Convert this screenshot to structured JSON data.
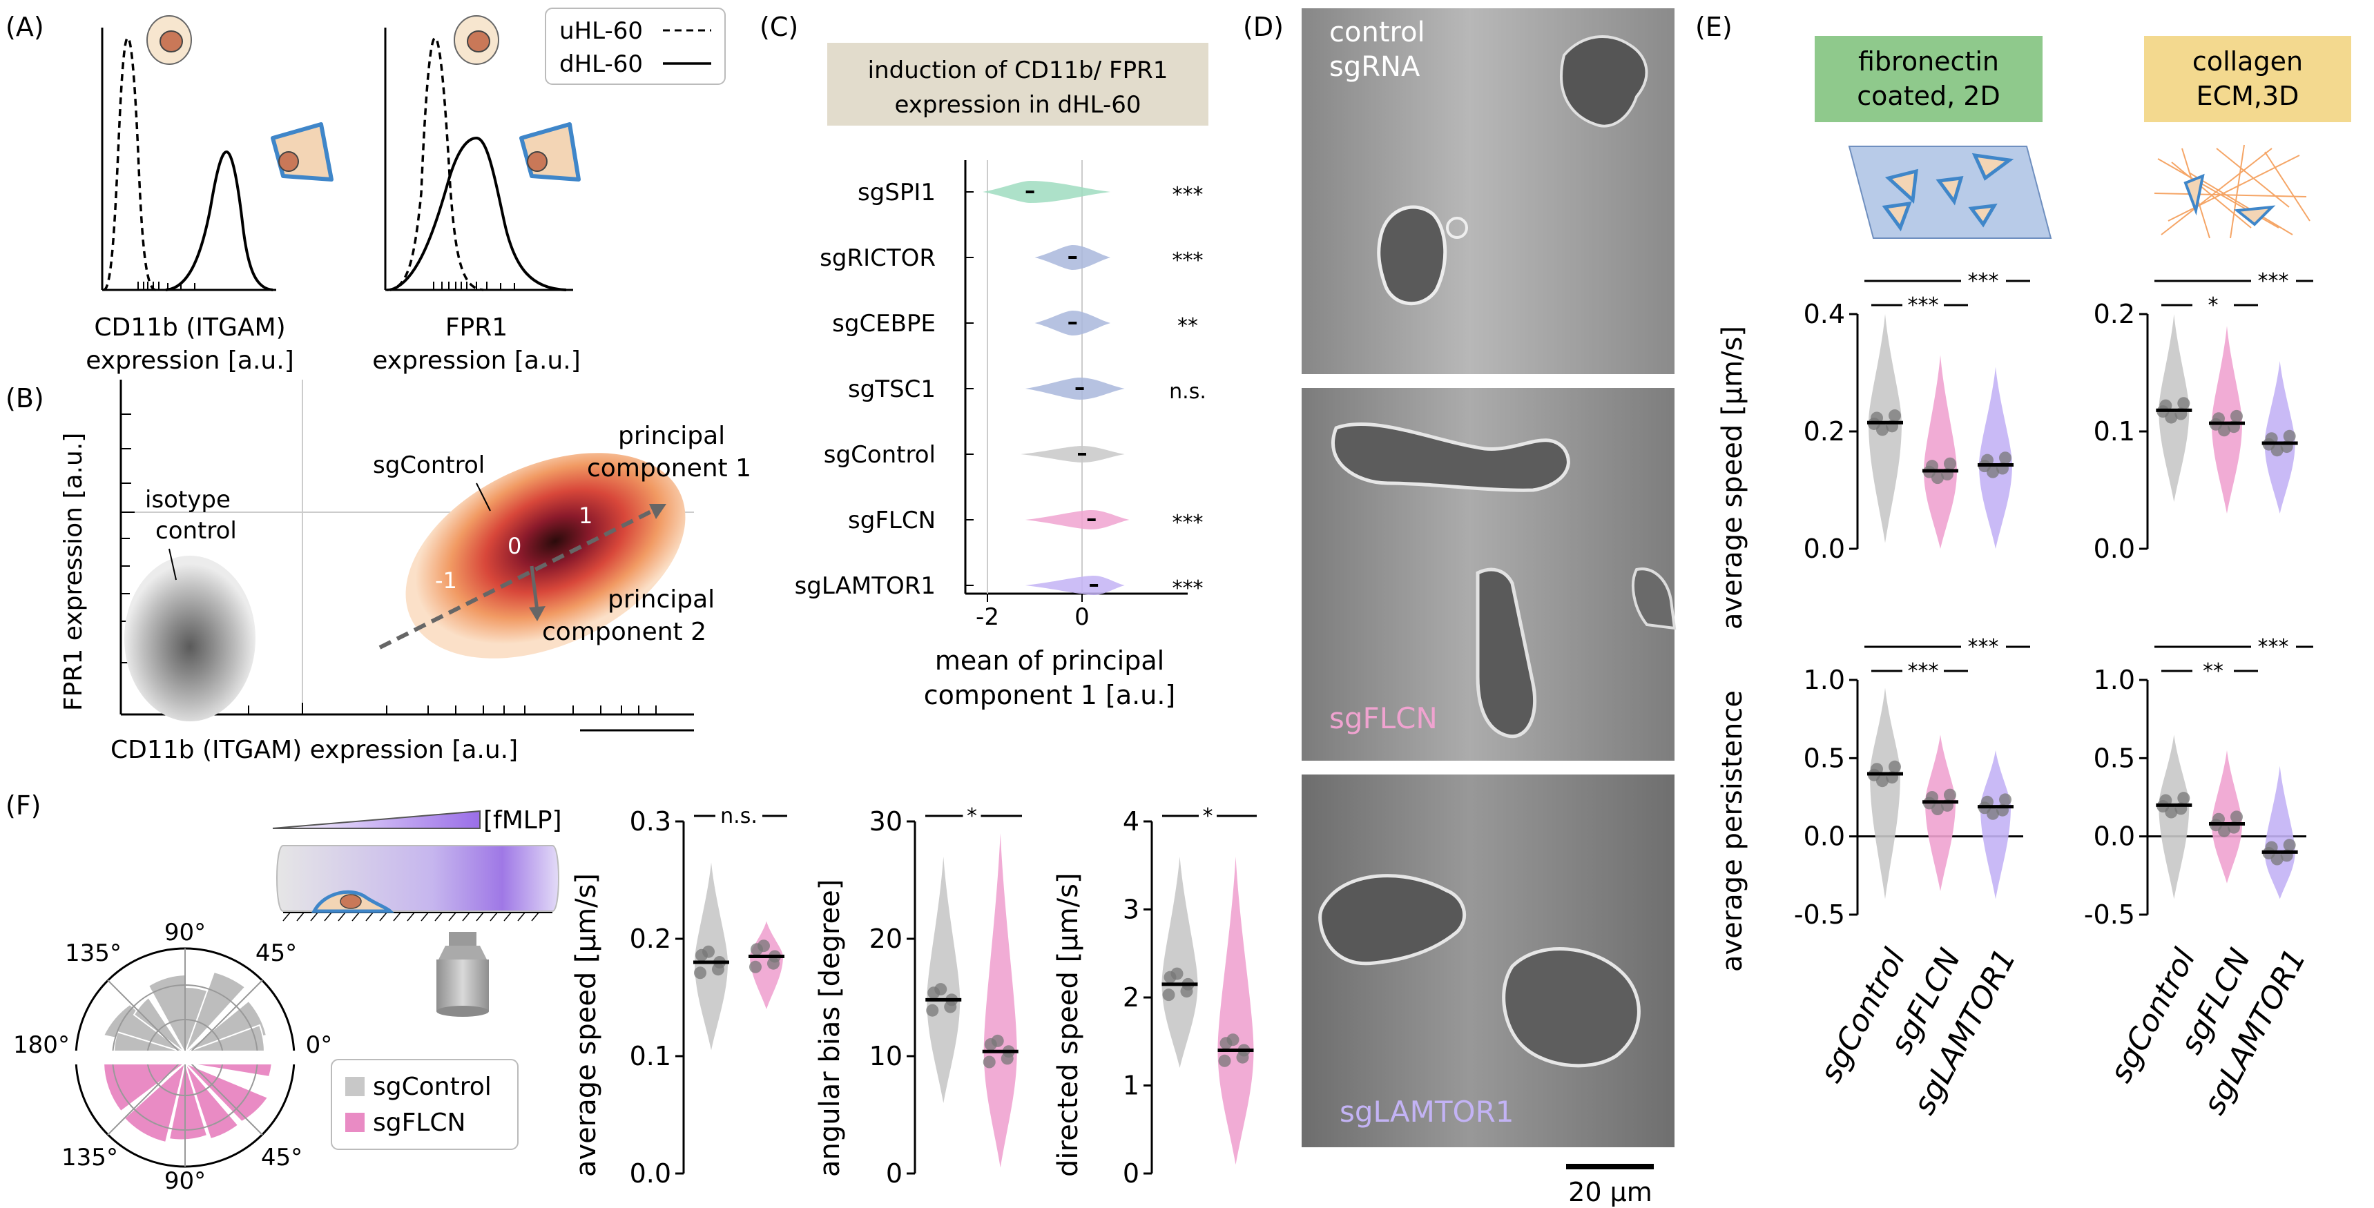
{
  "panels": {
    "A": {
      "label": "(A)",
      "legend": [
        {
          "name": "uHL-60",
          "dash": true
        },
        {
          "name": "dHL-60",
          "dash": false
        }
      ],
      "plot1_label_line1": "CD11b (ITGAM)",
      "plot1_label_line2": "expression [a.u.]",
      "plot2_label_line1": "FPR1",
      "plot2_label_line2": "expression [a.u.]"
    },
    "B": {
      "label": "(B)",
      "xlabel": "CD11b (ITGAM) expression [a.u.]",
      "ylabel": "FPR1 expression [a.u.]",
      "isotype_line1": "isotype",
      "isotype_line2": "control",
      "sgcontrol": "sgControl",
      "pc1_line1": "principal",
      "pc1_line2": "component 1",
      "pc2_line1": "principal",
      "pc2_line2": "component 2",
      "contour_labels": [
        "-1",
        "0",
        "1"
      ]
    },
    "C": {
      "label": "(C)",
      "title_line1": "induction of CD11b/ FPR1",
      "title_line2": "expression in dHL-60",
      "xlabel_line1": "mean of principal",
      "xlabel_line2": "component 1 [a.u.]"
    },
    "D": {
      "label": "(D)",
      "image1_line1": "control",
      "image1_line2": "sgRNA",
      "image2_label": "sgFLCN",
      "image3_label": "sgLAMTOR1",
      "scalebar": "20 µm"
    },
    "E": {
      "label": "(E)",
      "fibro_line1": "fibronectin",
      "fibro_line2": "coated, 2D",
      "coll_line1": "collagen",
      "coll_line2": "ECM,3D",
      "speed_ylabel": "average speed [µm/s]",
      "persist_ylabel": "average persistence"
    },
    "F": {
      "label": "(F)",
      "fmlp": "[fMLP]",
      "polar_angles": [
        "90°",
        "45°",
        "0°",
        "45°",
        "90°",
        "135°",
        "180°",
        "135°"
      ],
      "legend": [
        "sgControl",
        "sgFLCN"
      ]
    }
  },
  "colors": {
    "sgControl": "#c8c8c8",
    "sgFLCN": "#f0a3d0",
    "sgLAMTOR1": "#c3b3f5",
    "sgSPI1": "#9fdcc0",
    "knockout_blue": "#a9b7dc",
    "fibronectin_box": "#8fc98c",
    "collagen_box": "#f3d98f",
    "title_box_C": "#e2dccc",
    "fmlp_purple": "#9a6ee8"
  },
  "chart_data": [
    {
      "id": "C",
      "type": "violin",
      "categories": [
        "sgSPI1",
        "sgRICTOR",
        "sgCEBPE",
        "sgTSC1",
        "sgControl",
        "sgFLCN",
        "sgLAMTOR1"
      ],
      "means": [
        -1.1,
        -0.2,
        -0.2,
        -0.05,
        0.0,
        0.2,
        0.25
      ],
      "significance": [
        "***",
        "***",
        "**",
        "n.s.",
        "",
        "***",
        "***"
      ],
      "x_ticks": [
        "-2",
        "0"
      ],
      "xlim": [
        -2.5,
        1.5
      ]
    },
    {
      "id": "E-speed-2D",
      "type": "violin",
      "categories": [
        "sgControl",
        "sgFLCN",
        "sgLAMTOR1"
      ],
      "means": [
        0.215,
        0.133,
        0.143
      ],
      "y_ticks": [
        "0.0",
        "0.2",
        "0.4"
      ],
      "ylim": [
        0,
        0.4
      ],
      "brackets": [
        "***",
        "***"
      ]
    },
    {
      "id": "E-speed-3D",
      "type": "violin",
      "categories": [
        "sgControl",
        "sgFLCN",
        "sgLAMTOR1"
      ],
      "means": [
        0.118,
        0.107,
        0.09
      ],
      "y_ticks": [
        "0.0",
        "0.1",
        "0.2"
      ],
      "ylim": [
        0,
        0.2
      ],
      "brackets": [
        "***",
        "*"
      ]
    },
    {
      "id": "E-persist-2D",
      "type": "violin",
      "categories": [
        "sgControl",
        "sgFLCN",
        "sgLAMTOR1"
      ],
      "means": [
        0.4,
        0.22,
        0.19
      ],
      "y_ticks": [
        "-0.5",
        "0.0",
        "0.5",
        "1.0"
      ],
      "ylim": [
        -0.5,
        1.0
      ],
      "brackets": [
        "***",
        "***"
      ]
    },
    {
      "id": "E-persist-3D",
      "type": "violin",
      "categories": [
        "sgControl",
        "sgFLCN",
        "sgLAMTOR1"
      ],
      "means": [
        0.2,
        0.08,
        -0.1
      ],
      "y_ticks": [
        "-0.5",
        "0.0",
        "0.5",
        "1.0"
      ],
      "ylim": [
        -0.5,
        1.0
      ],
      "brackets": [
        "***",
        "**"
      ]
    },
    {
      "id": "F-speed",
      "type": "violin",
      "categories": [
        "sgControl",
        "sgFLCN"
      ],
      "means": [
        0.18,
        0.185
      ],
      "ylabel": "average speed [µm/s]",
      "y_ticks": [
        "0.0",
        "0.1",
        "0.2",
        "0.3"
      ],
      "ylim": [
        0,
        0.3
      ],
      "bracket": "n.s."
    },
    {
      "id": "F-bias",
      "type": "violin",
      "categories": [
        "sgControl",
        "sgFLCN"
      ],
      "means": [
        14.8,
        10.4
      ],
      "ylabel": "angular bias [degree]",
      "y_ticks": [
        "0",
        "10",
        "20",
        "30"
      ],
      "ylim": [
        0,
        30
      ],
      "bracket": "*"
    },
    {
      "id": "F-directed",
      "type": "violin",
      "categories": [
        "sgControl",
        "sgFLCN"
      ],
      "means": [
        2.15,
        1.4
      ],
      "ylabel": "directed speed [µm/s]",
      "y_ticks": [
        "0",
        "1",
        "2",
        "3",
        "4"
      ],
      "ylim": [
        0,
        4
      ],
      "bracket": "*"
    }
  ]
}
